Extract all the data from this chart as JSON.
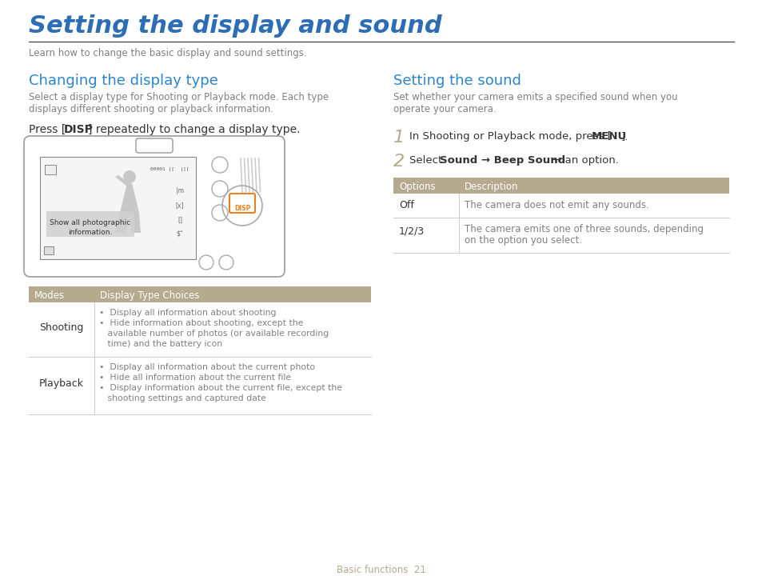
{
  "title": "Setting the display and sound",
  "title_color": "#2d6db5",
  "subtitle": "Learn how to change the basic display and sound settings.",
  "left_section_title": "Changing the display type",
  "left_section_title_color": "#2d84c8",
  "left_section_desc1": "Select a display type for Shooting or Playback mode. Each type",
  "left_section_desc2": "displays different shooting or playback information.",
  "right_section_title": "Setting the sound",
  "right_section_title_color": "#2d84c8",
  "right_section_desc1": "Set whether your camera emits a specified sound when you",
  "right_section_desc2": "operate your camera.",
  "table_header_bg": "#b5a98e",
  "table_header_color": "#ffffff",
  "table_row_divider": "#cccccc",
  "sound_table_headers": [
    "Options",
    "Description"
  ],
  "sound_table_rows": [
    [
      "Off",
      "The camera does not emit any sounds."
    ],
    [
      "1/2/3",
      "The camera emits one of three sounds, depending",
      "on the option you select."
    ]
  ],
  "display_table_headers": [
    "Modes",
    "Display Type Choices"
  ],
  "display_table_row1_label": "Shooting",
  "display_table_row1_lines": [
    "•  Display all information about shooting",
    "•  Hide information about shooting, except the",
    "   available number of photos (or available recording",
    "   time) and the battery icon"
  ],
  "display_table_row2_label": "Playback",
  "display_table_row2_lines": [
    "•  Display all information about the current photo",
    "•  Hide all information about the current file",
    "•  Display information about the current file, except the",
    "   shooting settings and captured date"
  ],
  "footer_text": "Basic functions  21",
  "footer_color": "#b5a98e",
  "bg_color": "#ffffff",
  "text_color": "#808080",
  "dark_text_color": "#333333",
  "divider_color": "#555555",
  "cam_body_color": "#ffffff",
  "cam_edge_color": "#999999",
  "cam_screen_color": "#f5f5f5",
  "cam_silhouette_color": "#c8c8c8",
  "cam_callout_color": "#d0d0d0",
  "cam_disp_color": "#e8811e"
}
